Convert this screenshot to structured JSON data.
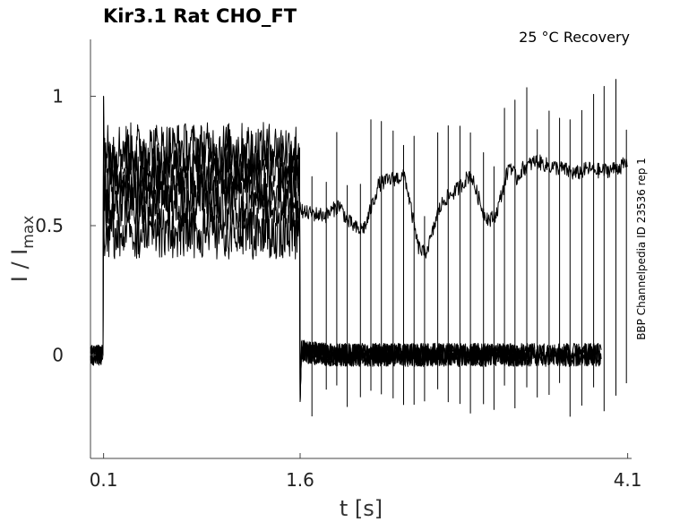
{
  "chart_data": {
    "type": "line",
    "title": "Kir3.1  Rat  CHO_FT",
    "condition": "25 °C  Recovery",
    "xlabel": "t [s]",
    "ylabel_main": "I / I",
    "ylabel_sub": "max",
    "side_note": "BBP Channelpedia ID 23536 rep 1",
    "xticks": [
      0.1,
      1.6,
      4.1
    ],
    "xtick_labels": [
      "0.1",
      "1.6",
      "4.1"
    ],
    "yticks": [
      0,
      0.5,
      1
    ],
    "ytick_labels": [
      "0",
      "0.5",
      "1"
    ],
    "xlim": [
      0.0,
      4.13
    ],
    "ylim": [
      -0.4,
      1.22
    ],
    "grid": false,
    "protocol": {
      "prepulse_end": 0.1,
      "pulse_end": 1.6,
      "end": 4.1
    },
    "series": [
      {
        "pulse_level": 0.47
      },
      {
        "pulse_level": 0.58
      },
      {
        "pulse_level": 0.65
      },
      {
        "pulse_level": 0.72
      },
      {
        "pulse_level": 0.8
      }
    ],
    "recovery_trace": {
      "t": [
        1.6,
        1.62,
        1.8,
        1.9,
        1.96,
        2.05,
        2.1,
        2.2,
        2.3,
        2.4,
        2.5,
        2.55,
        2.6,
        2.65,
        2.7,
        2.8,
        2.9,
        3.0,
        3.05,
        3.1,
        3.2,
        3.25,
        3.3,
        3.4,
        3.5,
        3.6,
        3.7,
        3.8,
        3.9,
        4.0,
        4.1
      ],
      "y": [
        0.6,
        0.55,
        0.54,
        0.58,
        0.52,
        0.48,
        0.5,
        0.66,
        0.68,
        0.69,
        0.42,
        0.39,
        0.45,
        0.55,
        0.6,
        0.64,
        0.7,
        0.55,
        0.52,
        0.55,
        0.74,
        0.68,
        0.72,
        0.75,
        0.73,
        0.72,
        0.7,
        0.72,
        0.71,
        0.72,
        0.74
      ]
    },
    "spike_times": [
      1.69,
      1.8,
      1.88,
      1.96,
      2.06,
      2.14,
      2.22,
      2.31,
      2.39,
      2.47,
      2.55,
      2.65,
      2.73,
      2.82,
      2.9,
      3.0,
      3.08,
      3.16,
      3.24,
      3.33,
      3.41,
      3.5,
      3.58,
      3.66,
      3.75,
      3.84,
      3.92,
      4.01,
      4.09
    ]
  }
}
